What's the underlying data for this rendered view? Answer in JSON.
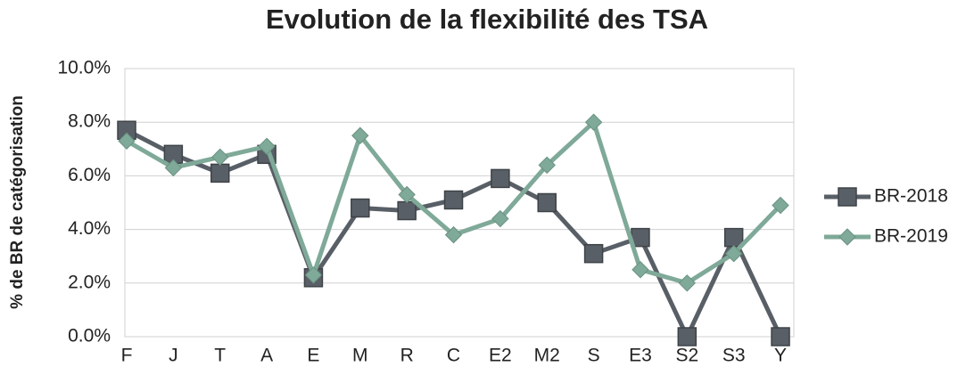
{
  "chart_data": {
    "type": "line",
    "title": "Evolution de la flexibilité des TSA",
    "y_label": "% de BR de catégorisation",
    "categories": [
      "F",
      "J",
      "T",
      "A",
      "E",
      "M",
      "R",
      "C",
      "E2",
      "M2",
      "S",
      "E3",
      "S2",
      "S3",
      "Y"
    ],
    "series": [
      {
        "name": "BR-2018",
        "color": "#595f66",
        "marker": "square",
        "values": [
          7.7,
          6.8,
          6.1,
          6.8,
          2.2,
          4.8,
          4.7,
          5.1,
          5.9,
          5.0,
          3.1,
          3.7,
          0,
          3.7,
          0
        ]
      },
      {
        "name": "BR-2019",
        "color": "#7fa998",
        "marker": "diamond",
        "values": [
          7.3,
          6.3,
          6.7,
          7.1,
          2.3,
          7.5,
          5.3,
          3.8,
          4.4,
          6.4,
          8.0,
          2.5,
          2.0,
          3.1,
          4.9
        ]
      }
    ],
    "ylim": [
      0,
      10
    ],
    "yticks": [
      {
        "value": 0,
        "label": "0.0%"
      },
      {
        "value": 2,
        "label": "2.0%"
      },
      {
        "value": 4,
        "label": "4.0%"
      },
      {
        "value": 6,
        "label": "6.0%"
      },
      {
        "value": 8,
        "label": "8.0%"
      },
      {
        "value": 10,
        "label": "10.0%"
      }
    ],
    "grid": true,
    "legend": "right"
  }
}
